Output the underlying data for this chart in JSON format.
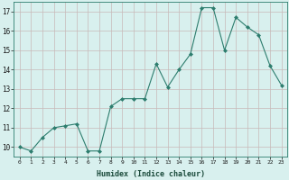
{
  "x": [
    0,
    1,
    2,
    3,
    4,
    5,
    6,
    7,
    8,
    9,
    10,
    11,
    12,
    13,
    14,
    15,
    16,
    17,
    18,
    19,
    20,
    21,
    22,
    23
  ],
  "y": [
    10.0,
    9.8,
    10.5,
    11.0,
    11.1,
    11.2,
    9.8,
    9.8,
    12.1,
    12.5,
    12.5,
    12.5,
    14.3,
    13.1,
    14.0,
    14.8,
    17.2,
    17.2,
    15.0,
    16.7,
    16.2,
    15.8,
    14.2,
    13.2
  ],
  "line_color": "#2d7d6e",
  "marker_color": "#2d7d6e",
  "bg_color": "#d8f0ee",
  "grid_color": "#c8b8b8",
  "xlabel": "Humidex (Indice chaleur)",
  "ylabel_ticks": [
    10,
    11,
    12,
    13,
    14,
    15,
    16,
    17
  ],
  "xlim": [
    -0.5,
    23.5
  ],
  "ylim": [
    9.5,
    17.5
  ],
  "figsize": [
    3.2,
    2.0
  ],
  "dpi": 100
}
